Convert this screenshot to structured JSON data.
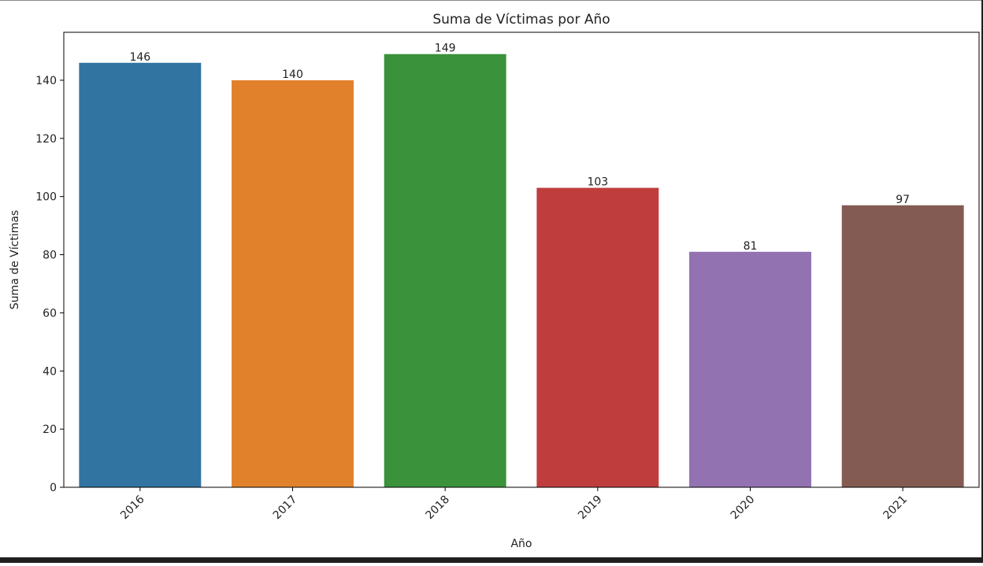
{
  "chart_data": {
    "type": "bar",
    "title": "Suma de Víctimas por Año",
    "xlabel": "Año",
    "ylabel": "Suma de Víctimas",
    "categories": [
      "2016",
      "2017",
      "2018",
      "2019",
      "2020",
      "2021"
    ],
    "values": [
      146,
      140,
      149,
      103,
      81,
      97
    ],
    "data_labels": [
      "146",
      "140",
      "149",
      "103",
      "81",
      "97"
    ],
    "colors": [
      "#3274a1",
      "#e1812c",
      "#3a923a",
      "#c03d3e",
      "#9372b2",
      "#845b53"
    ],
    "ylim": [
      0,
      156.5
    ],
    "yticks": [
      0,
      20,
      40,
      60,
      80,
      100,
      120,
      140
    ],
    "ytick_labels": [
      "0",
      "20",
      "40",
      "60",
      "80",
      "100",
      "120",
      "140"
    ],
    "xtick_rotation_deg": 45,
    "grid": false,
    "legend": "none"
  }
}
